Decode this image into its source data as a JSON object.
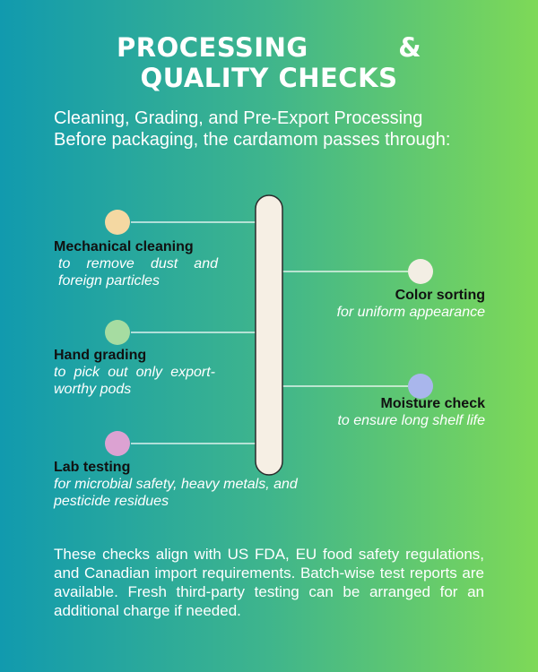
{
  "title_lines": [
    "PROCESSING &",
    "QUALITY CHECKS"
  ],
  "intro_lines": [
    "Cleaning, Grading, and Pre-Export Processing",
    "Before packaging, the cardamom passes through:"
  ],
  "steps": [
    {
      "name": "Mechanical cleaning",
      "description": "to remove dust and foreign particles"
    },
    {
      "name": "Color sorting",
      "description": "for uniform appearance"
    },
    {
      "name": "Hand grading",
      "description": "to pick out only export-worthy pods"
    },
    {
      "name": "Moisture check",
      "description": "to ensure long shelf life"
    },
    {
      "name": "Lab testing",
      "description": "for microbial safety, heavy metals, and pesticide residues"
    }
  ],
  "footer": "These checks align with US FDA, EU food safety regulations, and Canadian import requirements. Batch-wise test reports are available. Fresh third-party testing can be arranged for an additional charge if needed."
}
